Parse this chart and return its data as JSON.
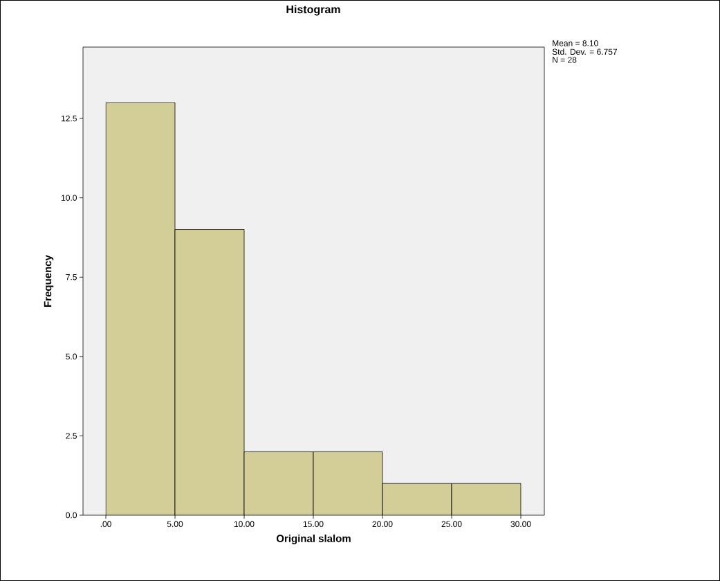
{
  "chart_data": {
    "type": "histogram",
    "title": "Histogram",
    "xlabel": "Original slalom",
    "ylabel": "Frequency",
    "bins": [
      0,
      5,
      10,
      15,
      20,
      25,
      30
    ],
    "values": [
      13,
      9,
      2,
      2,
      1,
      1
    ],
    "color": "#d3ce97",
    "xlim": [
      -1.65,
      31.7
    ],
    "ylim": [
      0,
      14.75
    ],
    "xticks": [
      {
        "value": 0,
        "label": ".00"
      },
      {
        "value": 5,
        "label": "5.00"
      },
      {
        "value": 10,
        "label": "10.00"
      },
      {
        "value": 15,
        "label": "15.00"
      },
      {
        "value": 20,
        "label": "20.00"
      },
      {
        "value": 25,
        "label": "25.00"
      },
      {
        "value": 30,
        "label": "30.00"
      }
    ],
    "yticks": [
      {
        "value": 0,
        "label": "0.0"
      },
      {
        "value": 2.5,
        "label": "2.5"
      },
      {
        "value": 5,
        "label": "5.0"
      },
      {
        "value": 7.5,
        "label": "7.5"
      },
      {
        "value": 10,
        "label": "10.0"
      },
      {
        "value": 12.5,
        "label": "12.5"
      }
    ],
    "annotations": [
      "Mean = 8.10",
      "Std. Dev. = 6.757",
      "N = 28"
    ],
    "grid": false
  }
}
